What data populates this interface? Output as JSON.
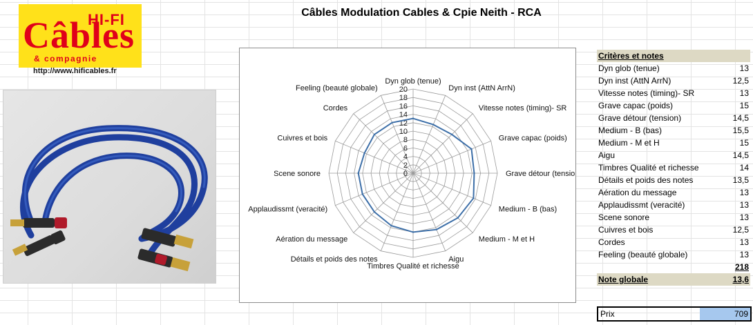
{
  "title": "Câbles Modulation Cables & Cpie  Neith  - RCA",
  "logo": {
    "line1": "HI-FI",
    "line2": "Câbles",
    "line3": "& compagnie",
    "url": "http://www.hificables.fr"
  },
  "photo": {
    "icon": "rca-cable-photo"
  },
  "colors": {
    "series": "#3d6fa8",
    "header_bg": "#ddd9c4",
    "price_bg": "#a6c8ee",
    "logo_bg": "#ffe11a",
    "logo_text": "#e0001a"
  },
  "chart_data": {
    "type": "radar",
    "title": "",
    "categories": [
      "Dyn glob (tenue)",
      "Dyn inst (AttN ArrN)",
      "Vitesse notes (timing)- SR",
      "Grave capac (poids)",
      "Grave détour (tension)",
      "Medium - B (bas)",
      "Medium - M et H",
      "Aigu",
      "Timbres Qualité et richesse",
      "Détails et poids des notes",
      "Aération du message",
      "Applaudissmt (veracité)",
      "Scene sonore",
      "Cuivres et bois",
      "Cordes",
      "Feeling (beauté globale)"
    ],
    "values": [
      13,
      12.5,
      13,
      15,
      14.5,
      15.5,
      15,
      14.5,
      14,
      13.5,
      13,
      13,
      13,
      12.5,
      13,
      13
    ],
    "rmin": 0,
    "rmax": 20,
    "ticks": [
      "0",
      "2",
      "4",
      "6",
      "8",
      "10",
      "12",
      "14",
      "16",
      "18",
      "20"
    ],
    "grid": true,
    "legend": "none"
  },
  "table": {
    "header": "Critères et notes",
    "rows": [
      {
        "label": "Dyn glob (tenue)",
        "value": "13"
      },
      {
        "label": "Dyn inst (AttN ArrN)",
        "value": "12,5"
      },
      {
        "label": "Vitesse notes (timing)- SR",
        "value": "13"
      },
      {
        "label": "Grave capac (poids)",
        "value": "15"
      },
      {
        "label": "Grave détour (tension)",
        "value": "14,5"
      },
      {
        "label": "Medium - B (bas)",
        "value": "15,5"
      },
      {
        "label": "Medium - M et H",
        "value": "15"
      },
      {
        "label": "Aigu",
        "value": "14,5"
      },
      {
        "label": "Timbres Qualité et richesse",
        "value": "14"
      },
      {
        "label": "Détails et poids des notes",
        "value": "13,5"
      },
      {
        "label": "Aération du message",
        "value": "13"
      },
      {
        "label": "Applaudissmt (veracité)",
        "value": "13"
      },
      {
        "label": "Scene sonore",
        "value": "13"
      },
      {
        "label": "Cuivres et bois",
        "value": "12,5"
      },
      {
        "label": "Cordes",
        "value": "13"
      },
      {
        "label": "Feeling (beauté globale)",
        "value": "13"
      }
    ],
    "total": "218",
    "overall_label": "Note globale",
    "overall_value": "13,6",
    "price_label": "Prix",
    "price_value": "709"
  }
}
